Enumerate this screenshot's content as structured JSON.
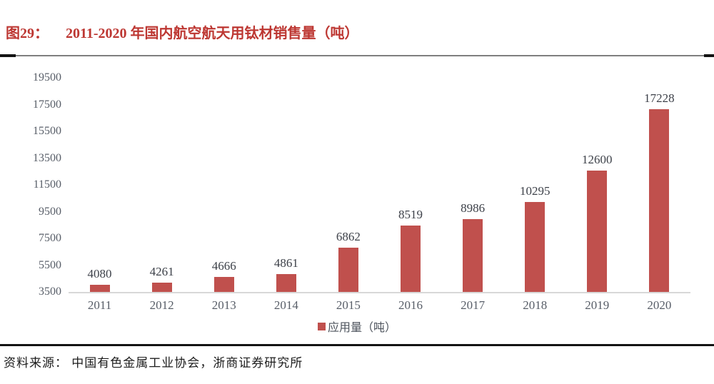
{
  "figure": {
    "label": "图29：",
    "title": "2011-2020 年国内航空航天用钛材销售量（吨）",
    "accent_color": "#bd3732"
  },
  "chart_data": {
    "type": "bar",
    "title": "2011-2020 年国内航空航天用钛材销售量（吨）",
    "categories": [
      "2011",
      "2012",
      "2013",
      "2014",
      "2015",
      "2016",
      "2017",
      "2018",
      "2019",
      "2020"
    ],
    "series": [
      {
        "name": "应用量（吨）",
        "values": [
          4080,
          4261,
          4666,
          4861,
          6862,
          8519,
          8986,
          10295,
          12600,
          17228
        ]
      }
    ],
    "xlabel": "",
    "ylabel": "",
    "ylim": [
      3500,
      19500
    ],
    "yticks": [
      3500,
      5500,
      7500,
      9500,
      11500,
      13500,
      15500,
      17500,
      19500
    ],
    "grid": false,
    "data_labels": true,
    "bar_color": "#c0504d",
    "legend_position": "bottom"
  },
  "legend": {
    "label": "应用量（吨）",
    "marker_color": "#c0504d"
  },
  "source": {
    "text": "资料来源： 中国有色金属工业协会，浙商证券研究所"
  }
}
